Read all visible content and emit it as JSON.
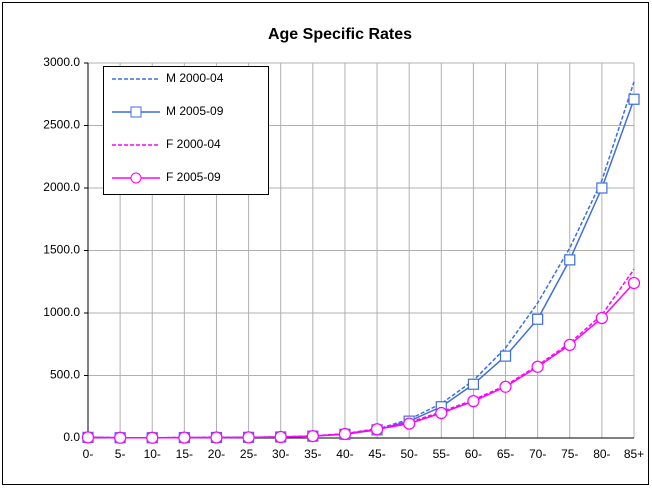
{
  "chart_data": {
    "type": "line",
    "title": "Age Specific Rates",
    "categories": [
      "0-",
      "5-",
      "10-",
      "15-",
      "20-",
      "25-",
      "30-",
      "35-",
      "40-",
      "45-",
      "50-",
      "55-",
      "60-",
      "65-",
      "70-",
      "75-",
      "80-",
      "85+"
    ],
    "series": [
      {
        "name": "M 2000-04",
        "color": "#3c6ee0",
        "dashed": true,
        "marker": "none",
        "values": [
          5,
          2,
          2,
          3,
          4,
          5,
          8,
          16,
          33,
          70,
          150,
          275,
          460,
          720,
          1080,
          1520,
          2060,
          2850
        ]
      },
      {
        "name": "M 2005-09",
        "color": "#3c6ee0",
        "dashed": false,
        "marker": "square",
        "values": [
          5,
          2,
          2,
          3,
          4,
          5,
          8,
          15,
          30,
          65,
          135,
          250,
          430,
          655,
          950,
          1425,
          2000,
          2710
        ]
      },
      {
        "name": "F 2000-04",
        "color": "#ff00ff",
        "dashed": true,
        "marker": "none",
        "values": [
          5,
          2,
          2,
          3,
          4,
          5,
          8,
          16,
          35,
          75,
          125,
          210,
          305,
          420,
          580,
          760,
          985,
          1350
        ]
      },
      {
        "name": "F 2005-09",
        "color": "#ff00ff",
        "dashed": false,
        "marker": "circle",
        "values": [
          5,
          2,
          2,
          3,
          4,
          5,
          8,
          15,
          32,
          70,
          115,
          200,
          295,
          410,
          570,
          745,
          960,
          1240
        ]
      }
    ],
    "ylim": [
      0,
      3000
    ],
    "yticks": [
      {
        "value": 0,
        "label": "0.0"
      },
      {
        "value": 500,
        "label": "500.0"
      },
      {
        "value": 1000,
        "label": "1000.0"
      },
      {
        "value": 1500,
        "label": "1500.0"
      },
      {
        "value": 2000,
        "label": "2000.0"
      },
      {
        "value": 2500,
        "label": "2500.0"
      },
      {
        "value": 3000,
        "label": "3000.0"
      }
    ],
    "grid": true,
    "legend": "top-left"
  }
}
